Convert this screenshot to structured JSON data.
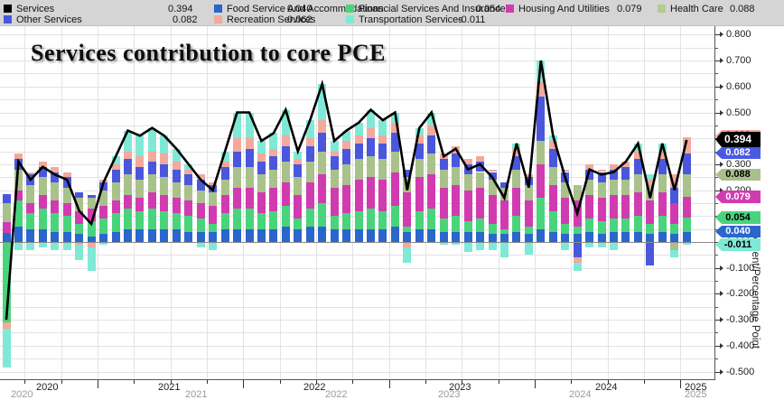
{
  "title": "Services contribution to core PCE",
  "legend": {
    "items": [
      {
        "label": "Services",
        "value": "0.394",
        "color": "#000000",
        "row": 1
      },
      {
        "label": "Food Service And Accommodations",
        "value": "0.040",
        "color": "#2b66cc",
        "row": 1
      },
      {
        "label": "Financial Services And Insurance",
        "value": "0.054",
        "color": "#49d47c",
        "row": 1
      },
      {
        "label": "Housing And Utilities",
        "value": "0.079",
        "color": "#d13bb0",
        "row": 1
      },
      {
        "label": "Health Care",
        "value": "0.088",
        "color": "#b2cc92",
        "row": 1
      },
      {
        "label": "Other Services",
        "value": "0.082",
        "color": "#4a57dd",
        "row": 2
      },
      {
        "label": "Recreation Services",
        "value": "0.062",
        "color": "#f3a99c",
        "row": 2
      },
      {
        "label": "Transportation Services",
        "value": "-0.011",
        "color": "#7fe9d6",
        "row": 2
      }
    ]
  },
  "y_axis": {
    "title": "Percent/Percentage Point",
    "tick_labels": [
      "0.800",
      "0.700",
      "0.600",
      "0.500",
      "0.400",
      "0.300",
      "0.200",
      "0.100",
      "0.000",
      "-0.100",
      "-0.200",
      "-0.300",
      "-0.400",
      "-0.500"
    ],
    "min": -0.5,
    "max": 0.8,
    "label_step": 0.1,
    "grid_step": 0.05
  },
  "x_axis": {
    "years": [
      "2020",
      "2021",
      "2022",
      "2023",
      "2024",
      "2025"
    ]
  },
  "badges": [
    {
      "label": "0.062",
      "bg": "#f2a89c",
      "fg": "#000000",
      "value": 0.408,
      "h": 13
    },
    {
      "label": "0.394",
      "bg": "#000000",
      "fg": "#ffffff",
      "value": 0.394,
      "h": 17
    },
    {
      "label": "0.082",
      "bg": "#4a5ae0",
      "fg": "#ffffff",
      "value": 0.343,
      "h": 13
    },
    {
      "label": "0.088",
      "bg": "#aabf8c",
      "fg": "#000000",
      "value": 0.261,
      "h": 13
    },
    {
      "label": "0.079",
      "bg": "#d13bb0",
      "fg": "#ffffff",
      "value": 0.173,
      "h": 14
    },
    {
      "label": "0.054",
      "bg": "#49d47c",
      "fg": "#000000",
      "value": 0.094,
      "h": 14
    },
    {
      "label": "0.040",
      "bg": "#2b66cc",
      "fg": "#ffffff",
      "value": 0.04,
      "h": 13
    },
    {
      "label": "-0.011",
      "bg": "#7fe9d6",
      "fg": "#000000",
      "value": -0.011,
      "h": 14
    }
  ],
  "chart_data": {
    "type": "bar",
    "subtype": "stacked-bars-with-line-overlay",
    "title": "Services contribution to core PCE",
    "ylabel": "Percent/Percentage Point",
    "ylim": [
      -0.5,
      0.8
    ],
    "grid": true,
    "legend_position": "top",
    "months": [
      "2020-05",
      "2020-06",
      "2020-07",
      "2020-08",
      "2020-09",
      "2020-10",
      "2020-11",
      "2020-12",
      "2021-01",
      "2021-02",
      "2021-03",
      "2021-04",
      "2021-05",
      "2021-06",
      "2021-07",
      "2021-08",
      "2021-09",
      "2021-10",
      "2021-11",
      "2021-12",
      "2022-01",
      "2022-02",
      "2022-03",
      "2022-04",
      "2022-05",
      "2022-06",
      "2022-07",
      "2022-08",
      "2022-09",
      "2022-10",
      "2022-11",
      "2022-12",
      "2023-01",
      "2023-02",
      "2023-03",
      "2023-04",
      "2023-05",
      "2023-06",
      "2023-07",
      "2023-08",
      "2023-09",
      "2023-10",
      "2023-11",
      "2023-12",
      "2024-01",
      "2024-02",
      "2024-03",
      "2024-04",
      "2024-05",
      "2024-06",
      "2024-07",
      "2024-08",
      "2024-09",
      "2024-10",
      "2024-11",
      "2024-12",
      "2025-01"
    ],
    "series": [
      {
        "name": "Food Service And Accommodations",
        "color": "#2b66cc",
        "latest": 0.04,
        "values": [
          0.035,
          0.06,
          0.05,
          0.05,
          0.04,
          0.04,
          0.03,
          0.02,
          0.03,
          0.04,
          0.05,
          0.05,
          0.05,
          0.05,
          0.05,
          0.04,
          0.04,
          0.04,
          0.05,
          0.05,
          0.05,
          0.05,
          0.05,
          0.06,
          0.05,
          0.06,
          0.06,
          0.05,
          0.05,
          0.05,
          0.05,
          0.05,
          0.06,
          0.04,
          0.05,
          0.05,
          0.04,
          0.04,
          0.04,
          0.04,
          0.03,
          0.03,
          0.04,
          0.03,
          0.05,
          0.04,
          0.03,
          0.03,
          0.04,
          0.03,
          0.04,
          0.04,
          0.04,
          0.03,
          0.04,
          0.03,
          0.04
        ]
      },
      {
        "name": "Financial Services And Insurance",
        "color": "#49d47c",
        "latest": 0.054,
        "values": [
          -0.31,
          0.1,
          0.06,
          0.08,
          0.07,
          0.06,
          0.04,
          0.06,
          0.06,
          0.07,
          0.08,
          0.07,
          0.08,
          0.07,
          0.06,
          0.06,
          0.05,
          0.03,
          0.06,
          0.08,
          0.08,
          0.06,
          0.07,
          0.08,
          0.04,
          0.07,
          0.09,
          0.05,
          0.06,
          0.07,
          0.08,
          0.07,
          0.08,
          0.02,
          0.07,
          0.08,
          0.05,
          0.06,
          0.04,
          0.05,
          0.04,
          0.02,
          0.06,
          0.03,
          0.12,
          0.08,
          0.04,
          0.03,
          0.05,
          0.05,
          0.05,
          0.05,
          0.06,
          0.04,
          0.06,
          0.04,
          0.054
        ]
      },
      {
        "name": "Housing And Utilities",
        "color": "#d13bb0",
        "latest": 0.079,
        "values": [
          0.04,
          0.04,
          0.04,
          0.05,
          0.05,
          0.05,
          0.05,
          0.05,
          0.05,
          0.05,
          0.05,
          0.05,
          0.06,
          0.06,
          0.06,
          0.06,
          0.06,
          0.07,
          0.07,
          0.08,
          0.08,
          0.08,
          0.09,
          0.09,
          0.09,
          0.1,
          0.11,
          0.11,
          0.11,
          0.12,
          0.12,
          0.12,
          0.13,
          0.13,
          0.13,
          0.13,
          0.12,
          0.12,
          0.12,
          0.12,
          0.11,
          0.11,
          0.11,
          0.1,
          0.13,
          0.1,
          0.1,
          0.1,
          0.09,
          0.09,
          0.09,
          0.09,
          0.09,
          0.09,
          0.09,
          0.08,
          0.079
        ]
      },
      {
        "name": "Health Care",
        "color": "#a9c18b",
        "latest": 0.088,
        "values": [
          0.075,
          0.08,
          0.07,
          0.07,
          0.07,
          0.06,
          0.05,
          0.04,
          0.06,
          0.07,
          0.08,
          0.07,
          0.07,
          0.07,
          0.06,
          0.06,
          0.05,
          0.05,
          0.06,
          0.08,
          0.08,
          0.07,
          0.07,
          0.08,
          0.07,
          0.08,
          0.09,
          0.07,
          0.08,
          0.08,
          0.08,
          0.08,
          0.08,
          0.06,
          0.07,
          0.08,
          0.07,
          0.07,
          0.06,
          0.06,
          0.06,
          0.05,
          0.07,
          0.06,
          0.09,
          0.07,
          0.06,
          0.06,
          0.06,
          0.06,
          0.06,
          0.06,
          0.07,
          0.06,
          0.07,
          -0.03,
          0.088
        ]
      },
      {
        "name": "Other Services",
        "color": "#4a57dd",
        "latest": 0.082,
        "values": [
          0.035,
          0.04,
          0.04,
          0.04,
          0.04,
          0.04,
          0.02,
          0.01,
          0.03,
          0.05,
          0.06,
          0.05,
          0.05,
          0.05,
          0.05,
          0.04,
          0.04,
          0.03,
          0.05,
          0.06,
          0.07,
          0.05,
          0.05,
          0.06,
          0.05,
          0.06,
          0.07,
          0.05,
          0.06,
          0.06,
          0.07,
          0.06,
          0.07,
          0.03,
          0.06,
          0.07,
          0.04,
          0.05,
          0.04,
          0.04,
          0.03,
          0.02,
          0.05,
          0.03,
          0.17,
          0.07,
          0.04,
          -0.06,
          0.04,
          0.04,
          0.04,
          0.05,
          0.06,
          -0.09,
          0.06,
          0.06,
          0.082
        ]
      },
      {
        "name": "Recreation Services",
        "color": "#f3a99c",
        "latest": 0.062,
        "values": [
          -0.025,
          0.02,
          0.01,
          0.02,
          0.02,
          0.02,
          -0.01,
          -0.02,
          0.01,
          0.02,
          0.03,
          0.04,
          0.04,
          0.04,
          0.03,
          0.02,
          0.02,
          0.01,
          0.02,
          0.05,
          0.04,
          0.03,
          0.03,
          0.04,
          0.02,
          0.03,
          0.05,
          0.02,
          0.03,
          0.03,
          0.04,
          0.03,
          0.04,
          -0.02,
          0.03,
          0.04,
          0.02,
          0.03,
          0.02,
          0.02,
          0.01,
          0.0,
          0.03,
          0.01,
          0.06,
          0.03,
          0.01,
          -0.02,
          0.02,
          0.01,
          0.02,
          0.02,
          0.03,
          0.02,
          0.03,
          0.05,
          0.062
        ]
      },
      {
        "name": "Transportation Services",
        "color": "#7fe9d6",
        "latest": -0.011,
        "values": [
          -0.15,
          -0.03,
          -0.03,
          -0.02,
          -0.03,
          -0.03,
          -0.06,
          -0.09,
          -0.01,
          0.03,
          0.08,
          0.08,
          0.09,
          0.07,
          0.05,
          0.02,
          -0.02,
          -0.03,
          0.04,
          0.1,
          0.1,
          0.05,
          0.06,
          0.1,
          0.03,
          0.07,
          0.14,
          0.04,
          0.04,
          0.05,
          0.07,
          0.06,
          0.04,
          -0.06,
          0.03,
          0.05,
          -0.01,
          -0.01,
          -0.04,
          -0.03,
          -0.03,
          -0.06,
          0.02,
          -0.05,
          0.08,
          0.02,
          -0.03,
          -0.03,
          -0.02,
          -0.02,
          -0.03,
          0.0,
          0.03,
          0.02,
          0.03,
          -0.03,
          -0.011
        ]
      }
    ],
    "line": {
      "name": "Services",
      "color": "#000000",
      "latest": 0.394,
      "values": [
        -0.3,
        0.31,
        0.24,
        0.29,
        0.26,
        0.24,
        0.12,
        0.07,
        0.23,
        0.33,
        0.43,
        0.41,
        0.44,
        0.41,
        0.36,
        0.3,
        0.24,
        0.2,
        0.35,
        0.5,
        0.5,
        0.39,
        0.42,
        0.51,
        0.35,
        0.47,
        0.61,
        0.39,
        0.43,
        0.46,
        0.51,
        0.47,
        0.5,
        0.2,
        0.44,
        0.5,
        0.33,
        0.36,
        0.28,
        0.3,
        0.25,
        0.17,
        0.38,
        0.21,
        0.7,
        0.41,
        0.25,
        0.11,
        0.28,
        0.26,
        0.27,
        0.31,
        0.38,
        0.17,
        0.38,
        0.2,
        0.394
      ]
    }
  }
}
